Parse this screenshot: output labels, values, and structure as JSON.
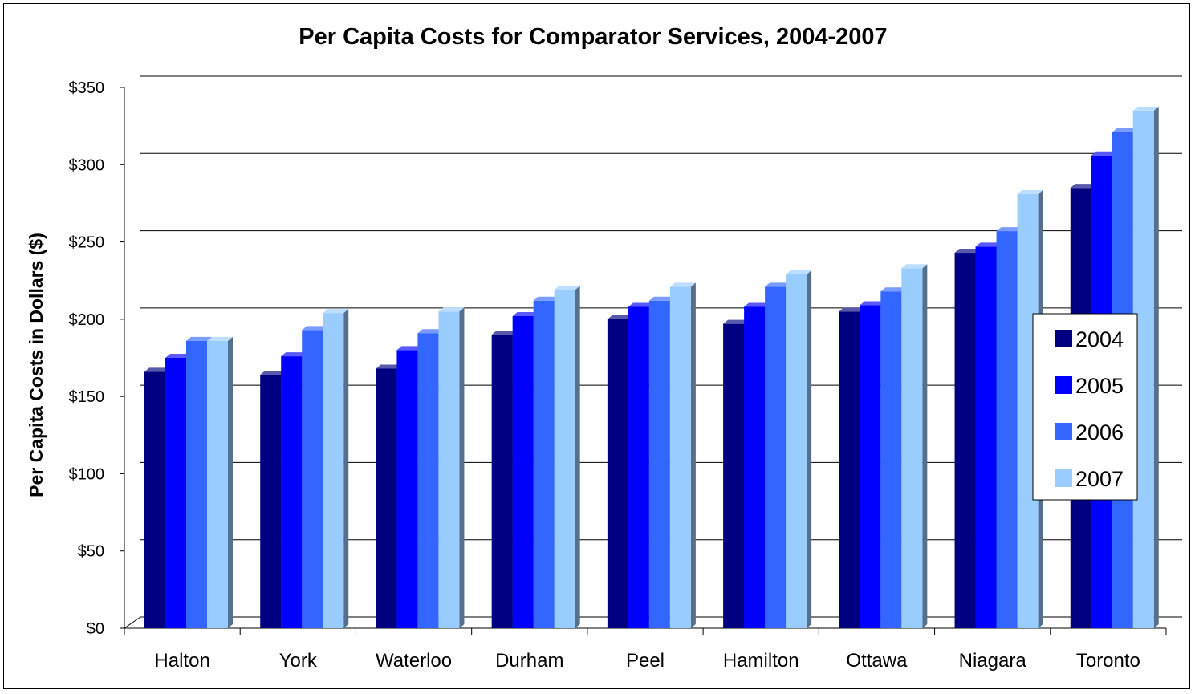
{
  "chart_data": {
    "type": "bar",
    "title": "Per Capita Costs for Comparator Services, 2004-2007",
    "xlabel": "",
    "ylabel": "Per Capita Costs in Dollars ($)",
    "ylim": [
      0,
      350
    ],
    "yticks": [
      0,
      50,
      100,
      150,
      200,
      250,
      300,
      350
    ],
    "ytick_labels": [
      "$0",
      "$50",
      "$100",
      "$150",
      "$200",
      "$250",
      "$300",
      "$350"
    ],
    "grid": true,
    "legend_position": "right",
    "categories": [
      "Halton",
      "York",
      "Waterloo",
      "Durham",
      "Peel",
      "Hamilton",
      "Ottawa",
      "Niagara",
      "Toronto"
    ],
    "series": [
      {
        "name": "2004",
        "color": "#000080",
        "values": [
          166,
          164,
          168,
          190,
          200,
          197,
          205,
          243,
          285
        ]
      },
      {
        "name": "2005",
        "color": "#0000FF",
        "values": [
          175,
          176,
          180,
          202,
          208,
          208,
          209,
          247,
          306
        ]
      },
      {
        "name": "2006",
        "color": "#3366FF",
        "values": [
          186,
          193,
          191,
          212,
          212,
          221,
          218,
          257,
          321
        ]
      },
      {
        "name": "2007",
        "color": "#99CCFF",
        "values": [
          186,
          204,
          205,
          219,
          221,
          229,
          233,
          281,
          335
        ]
      }
    ]
  }
}
